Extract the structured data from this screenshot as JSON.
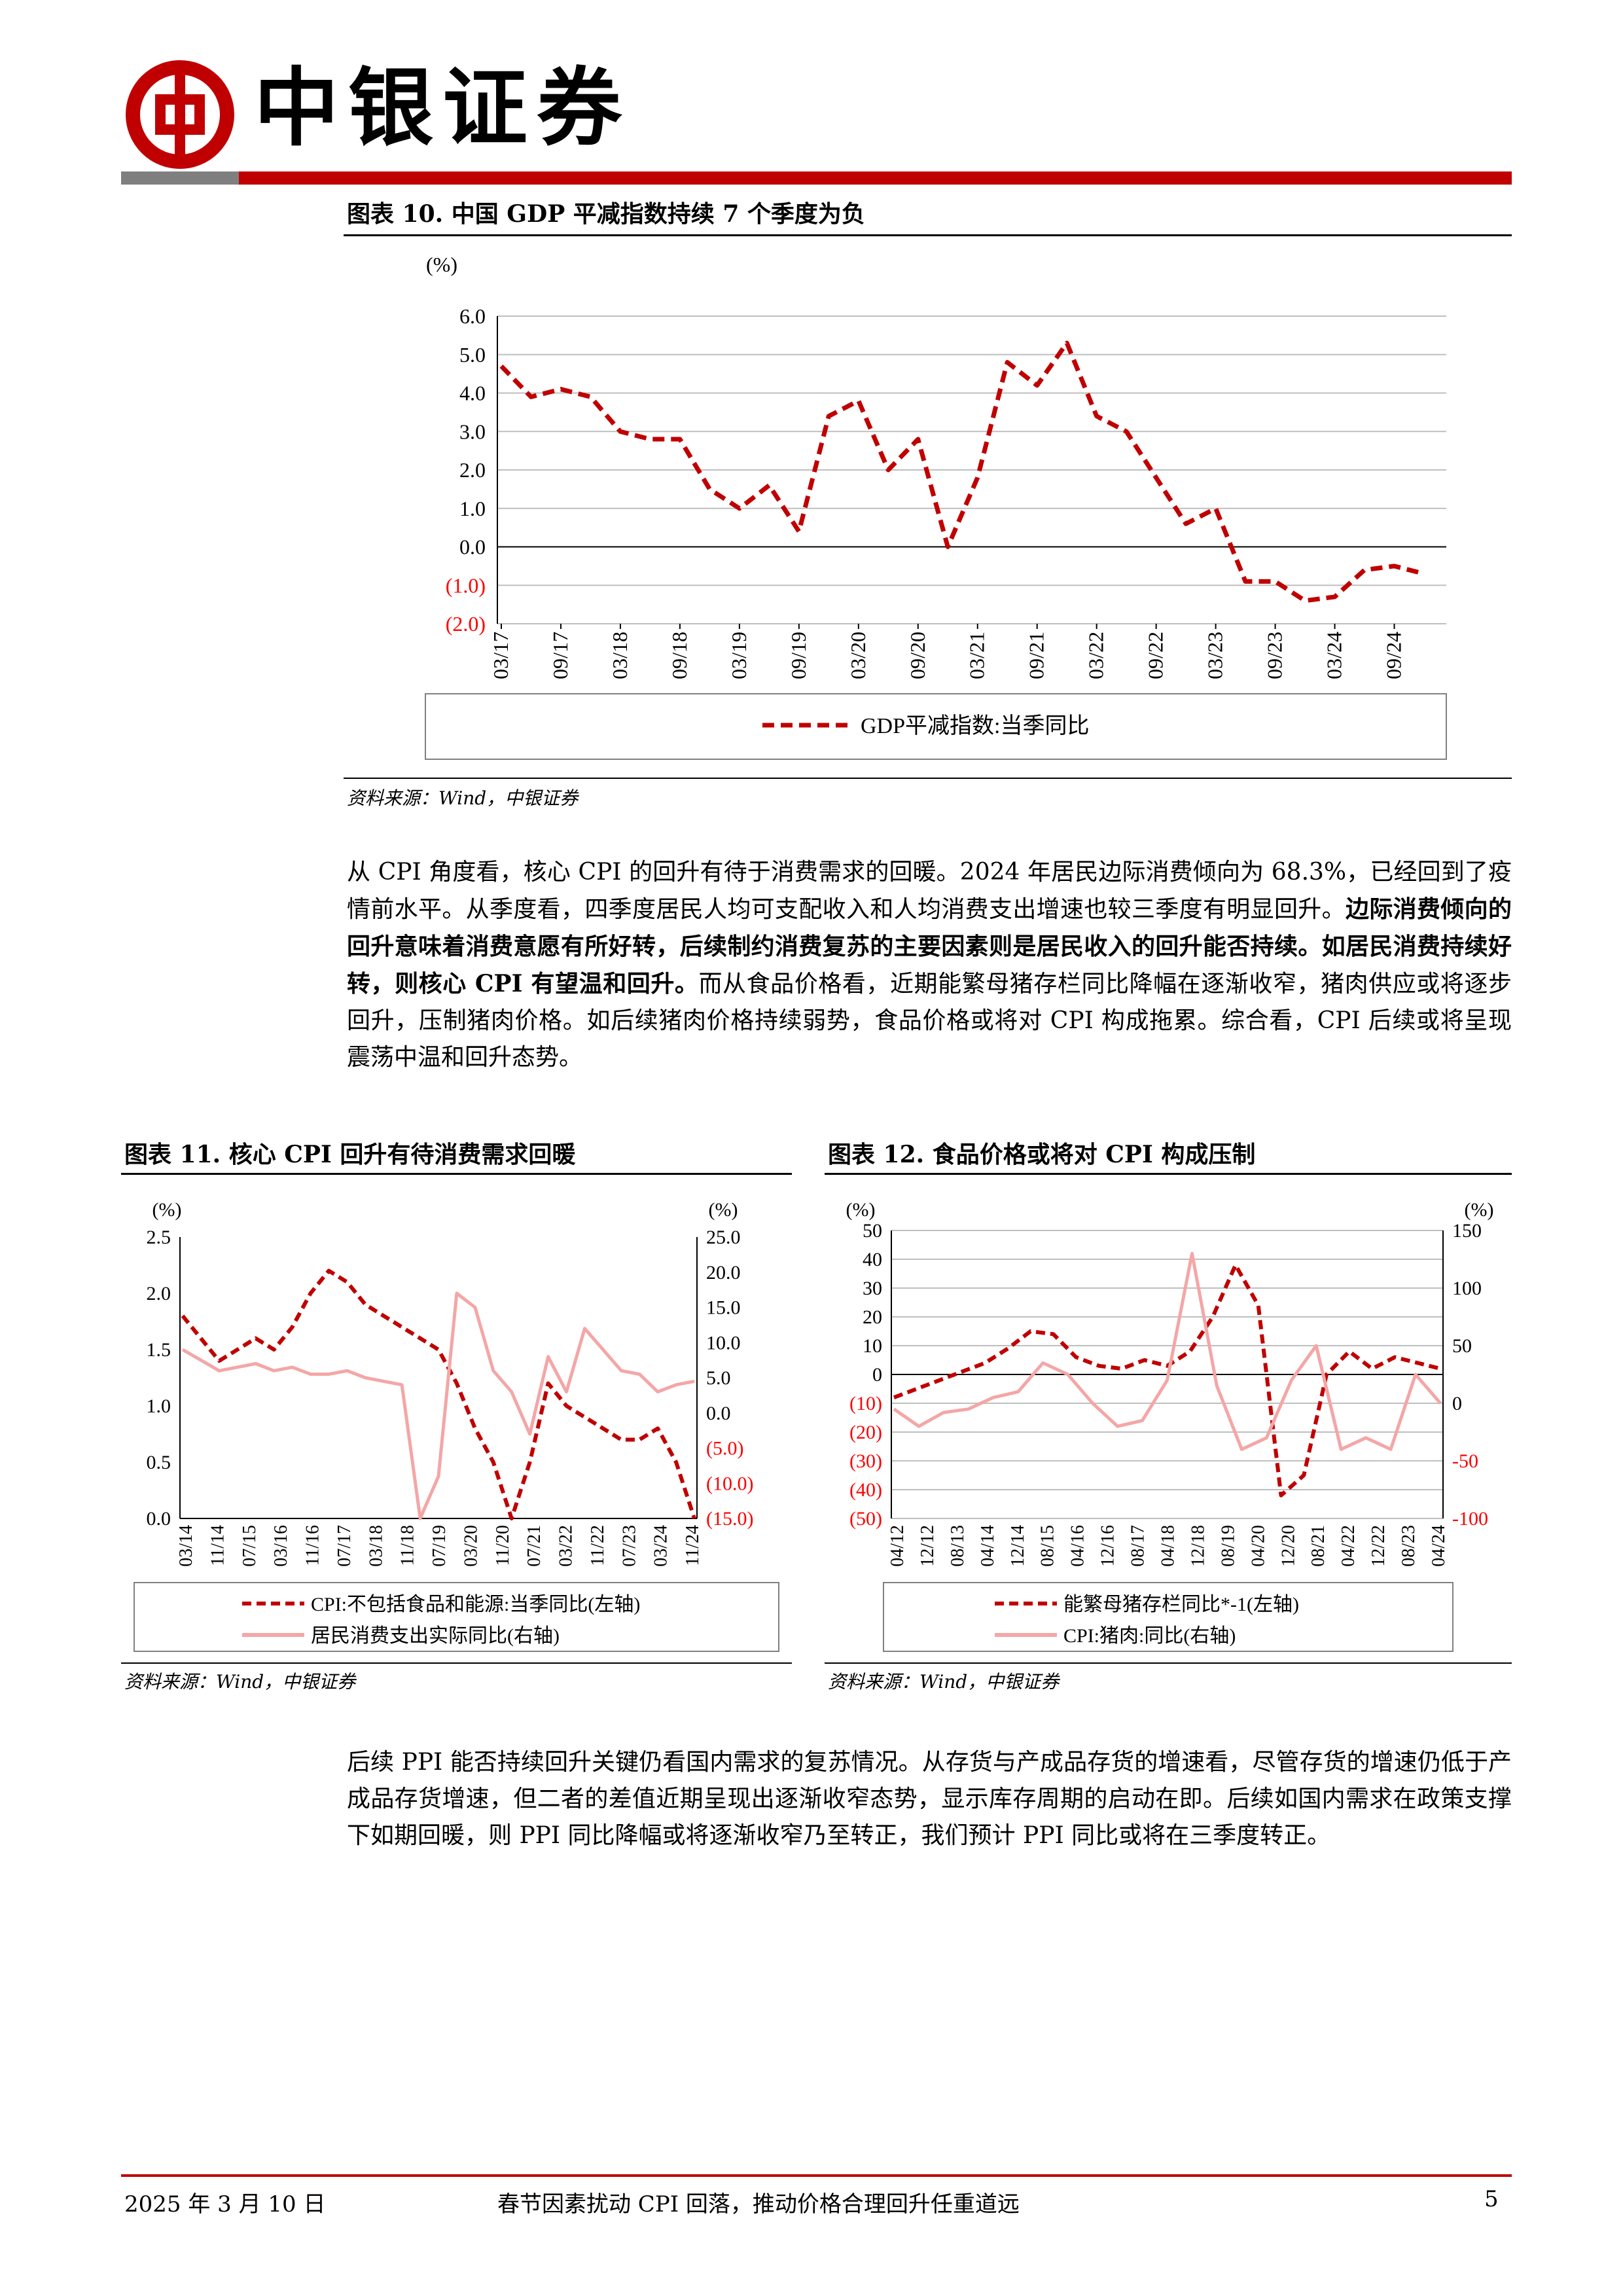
{
  "header": {
    "brand": "中银证券"
  },
  "fig10": {
    "title": "图表 10. 中国 GDP 平减指数持续 7 个季度为负",
    "source": "资料来源：Wind，中银证券",
    "unit": "(%)",
    "legend": "GDP平减指数:当季同比",
    "chart_data": {
      "type": "line",
      "ylim": [
        -2.0,
        6.0
      ],
      "yticks": [
        "6.0",
        "5.0",
        "4.0",
        "3.0",
        "2.0",
        "1.0",
        "0.0",
        "(1.0)",
        "(2.0)"
      ],
      "xticks": [
        "03/17",
        "09/17",
        "03/18",
        "09/18",
        "03/19",
        "09/19",
        "03/20",
        "09/20",
        "03/21",
        "09/21",
        "03/22",
        "09/22",
        "03/23",
        "09/23",
        "03/24",
        "09/24"
      ],
      "series": [
        {
          "name": "GDP平减指数:当季同比",
          "color": "#c00000",
          "values": [
            4.7,
            3.9,
            4.1,
            3.9,
            3.0,
            2.8,
            2.8,
            1.5,
            1.0,
            1.6,
            0.4,
            3.4,
            3.8,
            2.0,
            2.8,
            0.0,
            1.8,
            4.8,
            4.2,
            5.3,
            3.4,
            3.0,
            1.8,
            0.6,
            1.0,
            -0.9,
            -0.9,
            -1.4,
            -1.3,
            -0.6,
            -0.5,
            -0.7
          ]
        }
      ]
    }
  },
  "para1": {
    "s1": "从 CPI 角度看，核心 CPI 的回升有待于消费需求的回暖。2024 年居民边际消费倾向为 68.3%，已经回到了疫情前水平。从季度看，四季度居民人均可支配收入和人均消费支出增速也较三季度有明显回升。",
    "s2": "边际消费倾向的回升意味着消费意愿有所好转，后续制约消费复苏的主要因素则是居民收入的回升能否持续。如居民消费持续好转，则核心 CPI 有望温和回升。",
    "s3": "而从食品价格看，近期能繁母猪存栏同比降幅在逐渐收窄，猪肉供应或将逐步回升，压制猪肉价格。如后续猪肉价格持续弱势，食品价格或将对 CPI 构成拖累。综合看，CPI 后续或将呈现震荡中温和回升态势。"
  },
  "fig11": {
    "title": "图表 11. 核心 CPI 回升有待消费需求回暖",
    "source": "资料来源：Wind，中银证券",
    "unit_left": "(%)",
    "unit_right": "(%)",
    "legend": [
      "CPI:不包括食品和能源:当季同比(左轴)",
      "居民消费支出实际同比(右轴)"
    ],
    "chart_data": {
      "type": "line",
      "ylim_left": [
        0.0,
        2.5
      ],
      "ylim_right": [
        -15.0,
        25.0
      ],
      "yticks_left": [
        "2.5",
        "2.0",
        "1.5",
        "1.0",
        "0.5",
        "0.0"
      ],
      "yticks_right": [
        "25.0",
        "20.0",
        "15.0",
        "10.0",
        "5.0",
        "0.0",
        "(5.0)",
        "(10.0)",
        "(15.0)"
      ],
      "xticks": [
        "03/14",
        "11/14",
        "07/15",
        "03/16",
        "11/16",
        "07/17",
        "03/18",
        "11/18",
        "07/19",
        "03/20",
        "11/20",
        "07/21",
        "03/22",
        "11/22",
        "07/23",
        "03/24",
        "11/24"
      ],
      "series": [
        {
          "name": "CPI:不包括食品和能源:当季同比(左轴)",
          "color": "#c00000",
          "dashed": true,
          "values": [
            1.8,
            1.6,
            1.4,
            1.5,
            1.6,
            1.5,
            1.7,
            2.0,
            2.2,
            2.1,
            1.9,
            1.8,
            1.7,
            1.6,
            1.5,
            1.2,
            0.8,
            0.5,
            0.0,
            0.5,
            1.2,
            1.0,
            0.9,
            0.8,
            0.7,
            0.7,
            0.8,
            0.5,
            0.0
          ]
        },
        {
          "name": "居民消费支出实际同比(右轴)",
          "color": "#f4a6a6",
          "dashed": false,
          "values": [
            9.0,
            7.5,
            6.0,
            6.5,
            7.0,
            6.0,
            6.5,
            5.5,
            5.5,
            6.0,
            5.0,
            4.5,
            4.0,
            -15.0,
            -9.0,
            17.0,
            15.0,
            6.0,
            3.0,
            -3.0,
            8.0,
            3.0,
            12.0,
            9.0,
            6.0,
            5.5,
            3.0,
            4.0,
            4.5
          ]
        }
      ]
    }
  },
  "fig12": {
    "title": "图表 12. 食品价格或将对 CPI 构成压制",
    "source": "资料来源：Wind，中银证券",
    "unit_left": "(%)",
    "unit_right": "(%)",
    "legend": [
      "能繁母猪存栏同比*-1(左轴)",
      "CPI:猪肉:同比(右轴)"
    ],
    "chart_data": {
      "type": "line",
      "ylim_left": [
        -50,
        50
      ],
      "ylim_right": [
        -100,
        150
      ],
      "yticks_left": [
        "50",
        "40",
        "30",
        "20",
        "10",
        "0",
        "(10)",
        "(20)",
        "(30)",
        "(40)",
        "(50)"
      ],
      "yticks_right": [
        "150",
        "100",
        "50",
        "0",
        "-50",
        "-100"
      ],
      "xticks": [
        "04/12",
        "12/12",
        "08/13",
        "04/14",
        "12/14",
        "08/15",
        "04/16",
        "12/16",
        "08/17",
        "04/18",
        "12/18",
        "08/19",
        "04/20",
        "12/20",
        "08/21",
        "04/22",
        "12/22",
        "08/23",
        "04/24"
      ],
      "series": [
        {
          "name": "能繁母猪存栏同比*-1(左轴)",
          "color": "#c00000",
          "dashed": true,
          "values": [
            -8,
            -5,
            -2,
            1,
            4,
            9,
            15,
            14,
            6,
            3,
            2,
            5,
            3,
            8,
            20,
            38,
            24,
            -42,
            -35,
            0,
            8,
            2,
            6,
            4,
            2
          ]
        },
        {
          "name": "CPI:猪肉:同比(右轴)",
          "color": "#f4a6a6",
          "dashed": false,
          "values": [
            -5,
            -20,
            -8,
            -5,
            5,
            10,
            35,
            25,
            0,
            -20,
            -15,
            20,
            130,
            15,
            -40,
            -30,
            20,
            50,
            -40,
            -30,
            -40,
            25,
            0
          ]
        }
      ]
    }
  },
  "para2": {
    "text": "后续 PPI 能否持续回升关键仍看国内需求的复苏情况。从存货与产成品存货的增速看，尽管存货的增速仍低于产成品存货增速，但二者的差值近期呈现出逐渐收窄态势，显示库存周期的启动在即。后续如国内需求在政策支撑下如期回暖，则 PPI 同比降幅或将逐渐收窄乃至转正，我们预计 PPI 同比或将在三季度转正。"
  },
  "footer": {
    "date": "2025 年 3 月 10 日",
    "title": "春节因素扰动 CPI 回落，推动价格合理回升任重道远",
    "page": "5"
  }
}
